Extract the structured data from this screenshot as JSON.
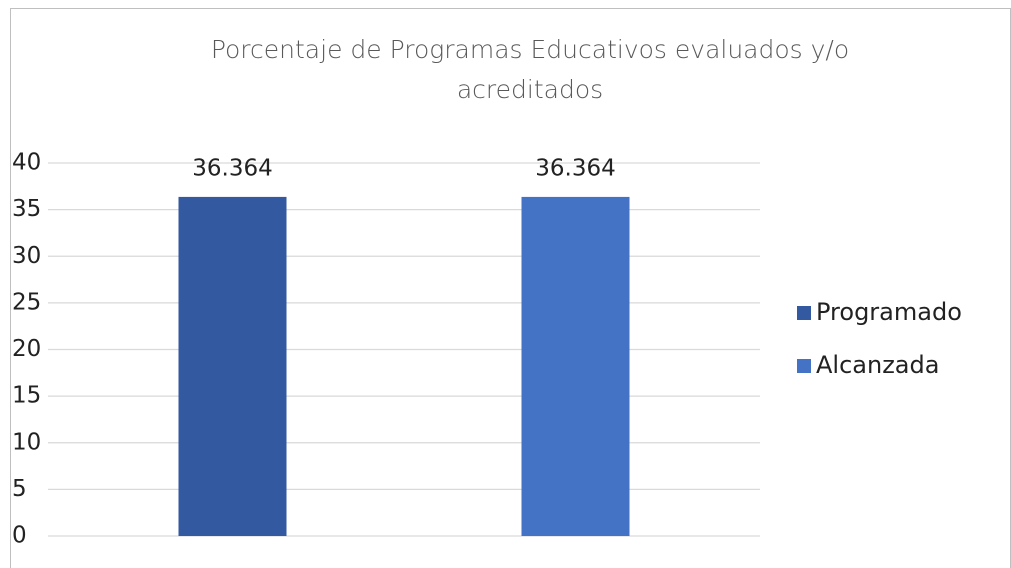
{
  "chart_data": {
    "type": "bar",
    "title": "Porcentaje de Programas Educativos evaluados y/o acreditados",
    "categories": [
      null
    ],
    "series": [
      {
        "name": "Programado",
        "color": "#335aa1",
        "values": [
          36.364
        ]
      },
      {
        "name": "Alcanzada",
        "color": "#4472c4",
        "values": [
          36.364
        ]
      }
    ],
    "ylim": [
      0,
      40
    ],
    "yticks": [
      0,
      5,
      10,
      15,
      20,
      25,
      30,
      35,
      40
    ],
    "grid": true,
    "legend": "right"
  }
}
